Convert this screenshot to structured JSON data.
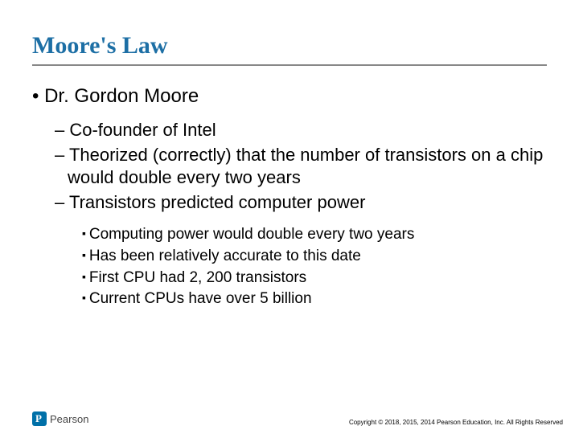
{
  "title": "Moore's Law",
  "level1": "Dr. Gordon Moore",
  "level2": {
    "a": "Co-founder of Intel",
    "b": "Theorized (correctly) that the number of transistors on a chip would double every two years",
    "c": "Transistors predicted computer power"
  },
  "level3": {
    "a": "Computing power would double every two years",
    "b": "Has been relatively accurate to this date",
    "c": "First CPU had 2, 200 transistors",
    "d": "Current CPUs have over 5 billion"
  },
  "logo_text": "Pearson",
  "copyright": "Copyright © 2018, 2015, 2014 Pearson Education, Inc. All Rights Reserved"
}
